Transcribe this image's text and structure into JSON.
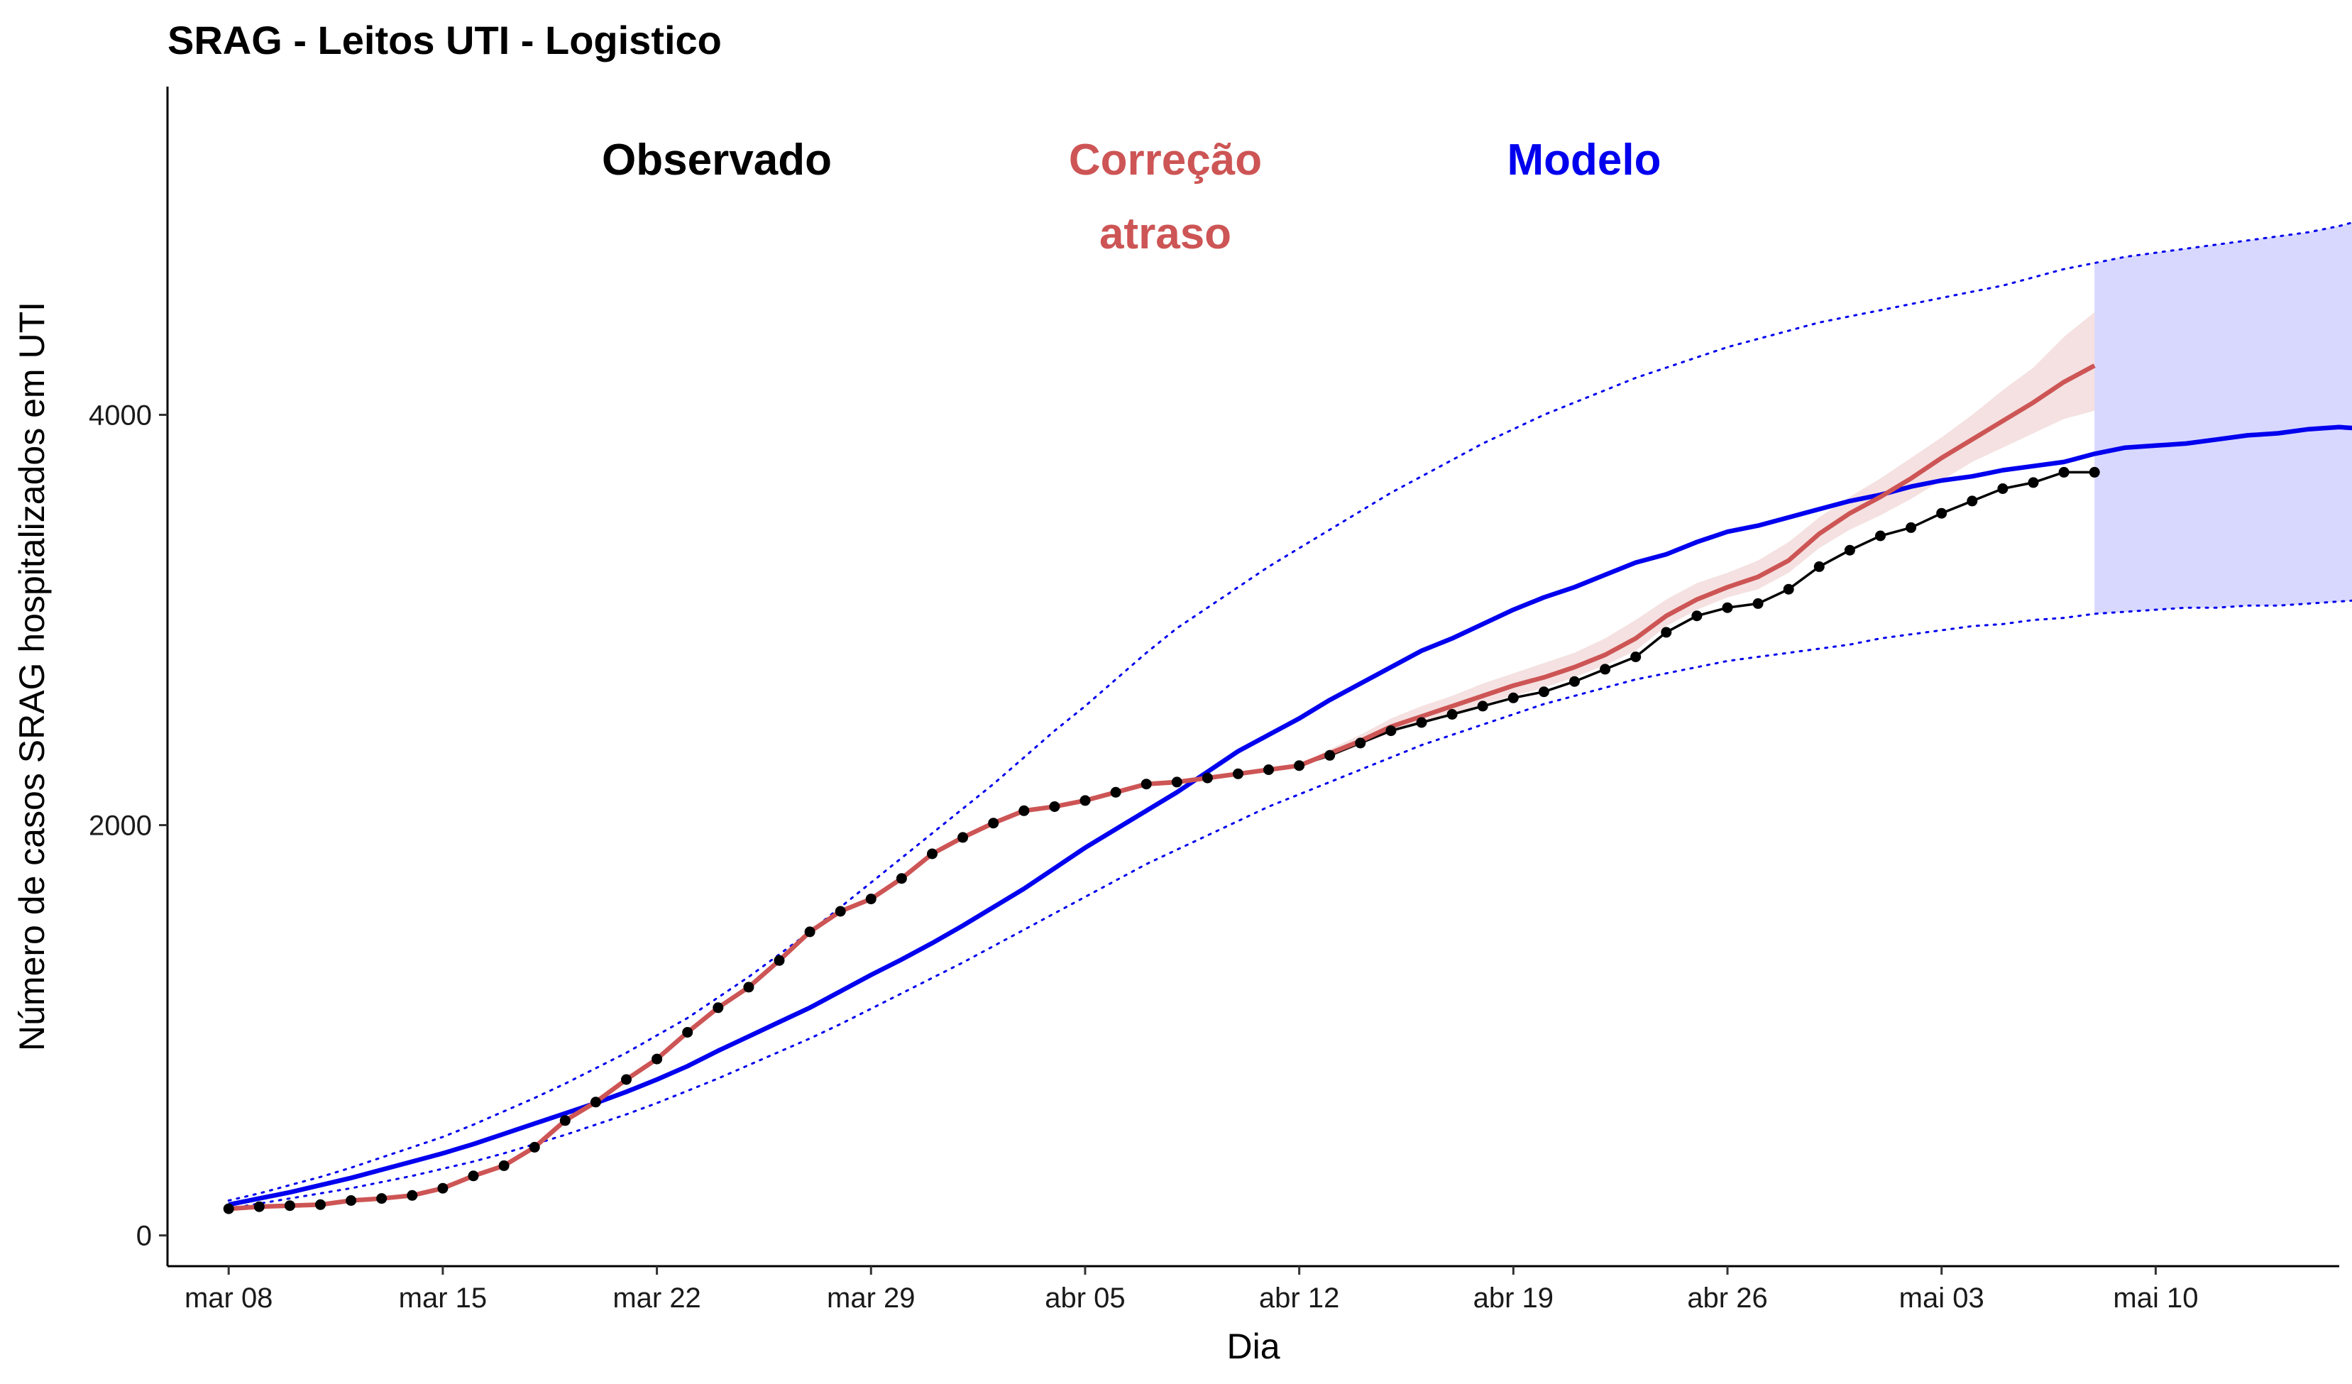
{
  "chart_data": {
    "type": "line",
    "title": "SRAG - Leitos UTI - Logistico",
    "xlabel": "Dia",
    "ylabel": "Número de casos SRAG hospitalizados em UTI",
    "x_start": "2020-03-08",
    "x_ticks": [
      "mar 08",
      "mar 15",
      "mar 22",
      "mar 29",
      "abr 05",
      "abr 12",
      "abr 19",
      "abr 26",
      "mai 03",
      "mai 10"
    ],
    "xlim": [
      "2020-03-06",
      "2020-05-16"
    ],
    "ylim": [
      -150,
      5600
    ],
    "y_ticks": [
      0,
      2000,
      4000
    ],
    "grid": false,
    "annotations": [
      {
        "text": "Observado",
        "color": "#000000"
      },
      {
        "text": "Correção atraso",
        "color": "#CD5555"
      },
      {
        "text": "Modelo",
        "color": "#0000EE"
      }
    ],
    "series": [
      {
        "role": "observado",
        "color": "#000000",
        "style": "line+points",
        "values": [
          130,
          140,
          145,
          150,
          170,
          180,
          195,
          230,
          290,
          340,
          430,
          560,
          650,
          760,
          860,
          990,
          1110,
          1210,
          1340,
          1480,
          1580,
          1640,
          1740,
          1860,
          1940,
          2010,
          2070,
          2090,
          2120,
          2160,
          2200,
          2210,
          2230,
          2250,
          2270,
          2290,
          2340,
          2400,
          2460,
          2500,
          2540,
          2580,
          2620,
          2650,
          2700,
          2760,
          2820,
          2940,
          3020,
          3060,
          3080,
          3150,
          3260,
          3340,
          3410,
          3450,
          3520,
          3580,
          3640,
          3670,
          3720,
          3720
        ]
      },
      {
        "role": "correcao",
        "color": "#CD5555",
        "style": "line",
        "values": [
          130,
          140,
          145,
          150,
          170,
          180,
          195,
          230,
          290,
          340,
          430,
          560,
          650,
          760,
          860,
          990,
          1110,
          1210,
          1340,
          1480,
          1580,
          1640,
          1740,
          1860,
          1940,
          2010,
          2070,
          2090,
          2120,
          2160,
          2200,
          2210,
          2230,
          2250,
          2270,
          2290,
          2350,
          2410,
          2480,
          2530,
          2580,
          2630,
          2680,
          2720,
          2770,
          2830,
          2910,
          3020,
          3100,
          3160,
          3210,
          3290,
          3420,
          3520,
          3600,
          3690,
          3790,
          3880,
          3970,
          4060,
          4160,
          4240
        ],
        "band_lower": [
          130,
          140,
          145,
          150,
          170,
          180,
          195,
          230,
          290,
          340,
          430,
          560,
          650,
          760,
          860,
          990,
          1110,
          1210,
          1340,
          1480,
          1580,
          1640,
          1740,
          1860,
          1940,
          2010,
          2070,
          2090,
          2120,
          2160,
          2200,
          2210,
          2230,
          2250,
          2270,
          2290,
          2330,
          2390,
          2450,
          2500,
          2540,
          2590,
          2630,
          2670,
          2720,
          2780,
          2850,
          2970,
          3050,
          3110,
          3150,
          3230,
          3350,
          3440,
          3510,
          3590,
          3680,
          3770,
          3840,
          3910,
          3980,
          4020
        ],
        "band_upper": [
          130,
          140,
          145,
          150,
          170,
          180,
          195,
          230,
          290,
          340,
          430,
          560,
          650,
          760,
          860,
          990,
          1110,
          1210,
          1340,
          1480,
          1580,
          1640,
          1740,
          1860,
          1940,
          2010,
          2070,
          2090,
          2120,
          2160,
          2200,
          2210,
          2230,
          2250,
          2270,
          2290,
          2370,
          2440,
          2520,
          2580,
          2630,
          2690,
          2740,
          2790,
          2840,
          2910,
          3000,
          3100,
          3180,
          3230,
          3290,
          3380,
          3500,
          3600,
          3690,
          3790,
          3890,
          4000,
          4120,
          4230,
          4380,
          4500
        ]
      },
      {
        "role": "modelo",
        "color": "#0000EE",
        "style": "line",
        "values": [
          150,
          180,
          210,
          245,
          280,
          320,
          360,
          400,
          445,
          495,
          545,
          595,
          645,
          700,
          760,
          825,
          900,
          970,
          1040,
          1110,
          1190,
          1270,
          1345,
          1425,
          1510,
          1600,
          1690,
          1790,
          1890,
          1980,
          2070,
          2160,
          2260,
          2360,
          2440,
          2520,
          2610,
          2690,
          2770,
          2850,
          2910,
          2980,
          3050,
          3110,
          3160,
          3220,
          3280,
          3320,
          3380,
          3430,
          3460,
          3500,
          3540,
          3580,
          3610,
          3650,
          3680,
          3700,
          3730,
          3750,
          3770,
          3810,
          3840,
          3850,
          3860,
          3880,
          3900,
          3910,
          3930,
          3940,
          3930
        ],
        "lower": [
          130,
          155,
          180,
          205,
          230,
          260,
          290,
          325,
          360,
          400,
          445,
          490,
          540,
          590,
          645,
          705,
          765,
          830,
          895,
          960,
          1030,
          1105,
          1180,
          1255,
          1330,
          1410,
          1490,
          1570,
          1650,
          1730,
          1810,
          1880,
          1950,
          2020,
          2090,
          2150,
          2210,
          2270,
          2330,
          2390,
          2440,
          2490,
          2540,
          2590,
          2630,
          2670,
          2710,
          2740,
          2770,
          2800,
          2820,
          2840,
          2860,
          2880,
          2910,
          2930,
          2950,
          2970,
          2980,
          3000,
          3010,
          3030,
          3040,
          3050,
          3060,
          3060,
          3070,
          3070,
          3080,
          3090,
          3100
        ],
        "upper": [
          170,
          205,
          245,
          285,
          330,
          380,
          430,
          480,
          540,
          605,
          670,
          740,
          815,
          890,
          975,
          1060,
          1160,
          1260,
          1370,
          1480,
          1600,
          1720,
          1840,
          1960,
          2080,
          2200,
          2330,
          2460,
          2580,
          2710,
          2840,
          2960,
          3060,
          3160,
          3260,
          3350,
          3440,
          3530,
          3620,
          3700,
          3780,
          3860,
          3930,
          4000,
          4060,
          4120,
          4180,
          4230,
          4280,
          4330,
          4370,
          4410,
          4450,
          4480,
          4510,
          4540,
          4570,
          4600,
          4630,
          4670,
          4710,
          4740,
          4770,
          4790,
          4810,
          4830,
          4850,
          4870,
          4890,
          4920,
          4960
        ]
      }
    ]
  }
}
